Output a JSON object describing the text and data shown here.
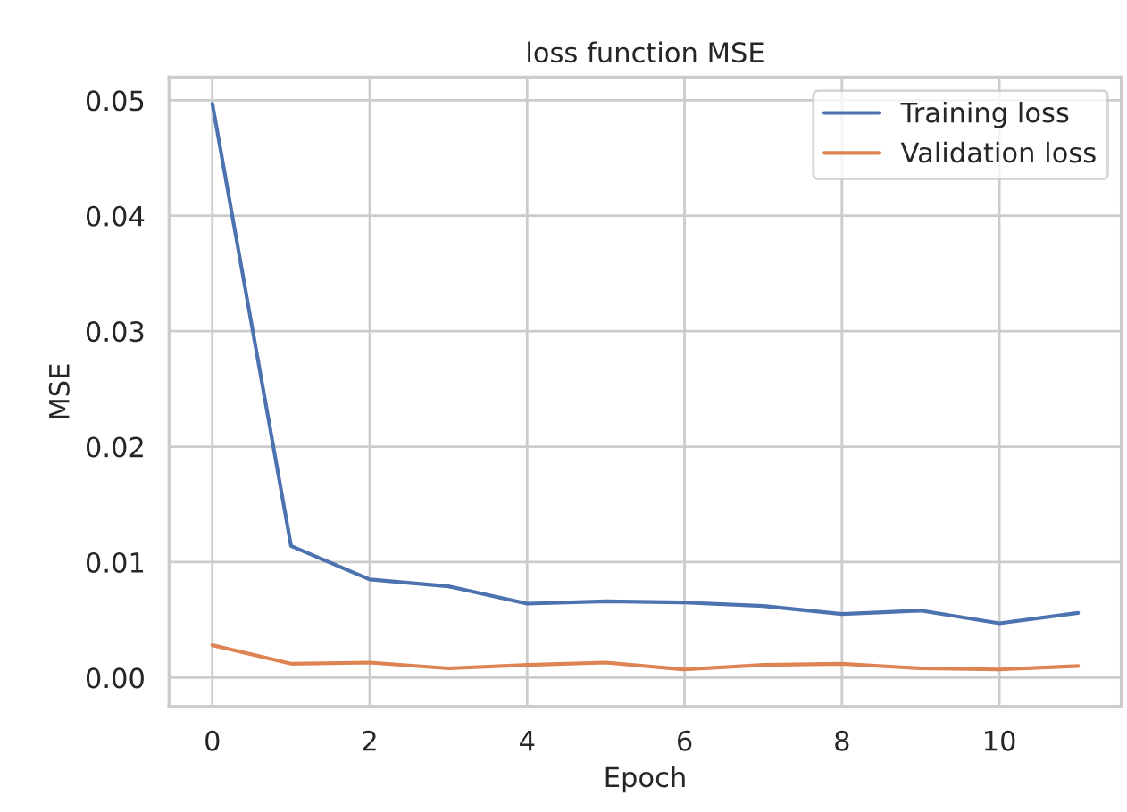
{
  "chart_data": {
    "type": "line",
    "title": "loss function MSE",
    "xlabel": "Epoch",
    "ylabel": "MSE",
    "x": [
      0,
      1,
      2,
      3,
      4,
      5,
      6,
      7,
      8,
      9,
      10,
      11
    ],
    "series": [
      {
        "name": "Training loss",
        "color": "#4c72b0",
        "values": [
          0.0497,
          0.0114,
          0.0085,
          0.0079,
          0.0064,
          0.0066,
          0.0065,
          0.0062,
          0.0055,
          0.0058,
          0.0047,
          0.0056
        ]
      },
      {
        "name": "Validation loss",
        "color": "#dd8452",
        "values": [
          0.0028,
          0.0012,
          0.0013,
          0.0008,
          0.0011,
          0.0013,
          0.0007,
          0.0011,
          0.0012,
          0.0008,
          0.0007,
          0.001
        ]
      }
    ],
    "xlim": [
      -0.55,
      11.55
    ],
    "ylim": [
      -0.0025,
      0.052
    ],
    "xticks": [
      0,
      2,
      4,
      6,
      8,
      10
    ],
    "yticks": [
      {
        "value": 0,
        "label": "0.00"
      },
      {
        "value": 0.01,
        "label": "0.01"
      },
      {
        "value": 0.02,
        "label": "0.02"
      },
      {
        "value": 0.03,
        "label": "0.03"
      },
      {
        "value": 0.04,
        "label": "0.04"
      },
      {
        "value": 0.05,
        "label": "0.05"
      }
    ],
    "grid": true,
    "legend": "top right",
    "marker": "none",
    "line_style": "solid"
  }
}
